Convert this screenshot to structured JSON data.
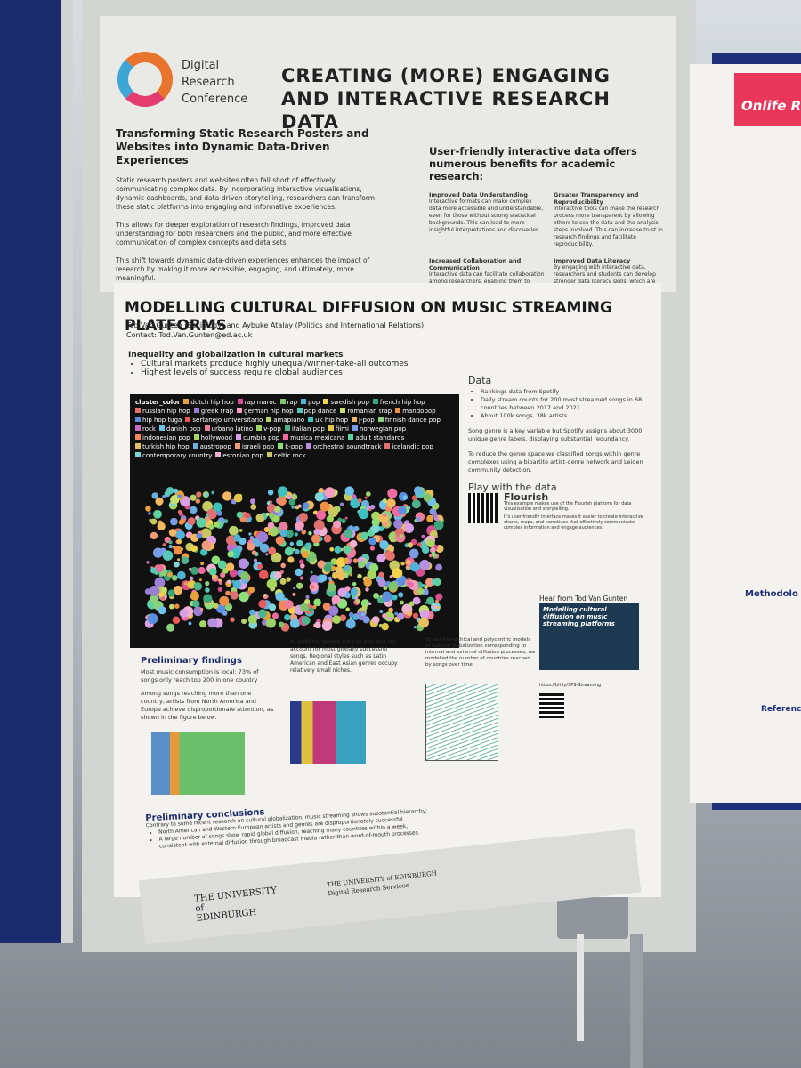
{
  "header": {
    "conference": [
      "Digital",
      "Research",
      "Conference"
    ],
    "title": "CREATING (MORE) ENGAGING AND INTERACTIVE RESEARCH DATA"
  },
  "intro": {
    "heading": "Transforming Static Research Posters and Websites into Dynamic Data-Driven Experiences",
    "paragraphs": [
      "Static research posters and websites often fall short of effectively communicating complex data. By incorporating interactive visualisations, dynamic dashboards, and data-driven storytelling, researchers can transform these static platforms into engaging and informative experiences.",
      "This allows for deeper exploration of research findings, improved data understanding for both researchers and the public, and more effective communication of complex concepts and data sets.",
      "This shift towards dynamic data-driven experiences enhances the impact of research by making it more accessible, engaging, and ultimately, more meaningful."
    ]
  },
  "benefits": {
    "heading": "User-friendly interactive data offers numerous benefits for academic research:",
    "items": [
      {
        "title": "Improved Data Understanding",
        "text": "Interactive formats can make complex data more accessible and understandable, even for those without strong statistical backgrounds. This can lead to more insightful interpretations and discoveries."
      },
      {
        "title": "Greater Transparency and Reproducibility",
        "text": "Interactive tools can make the research process more transparent by allowing others to see the data and the analysis steps involved. This can increase trust in research findings and facilitate reproducibility."
      },
      {
        "title": "Increased Collaboration and Communication",
        "text": "Interactive data can facilitate collaboration among researchers, enabling them to share insights, explore data together, and arrive at shared understandings more quickly."
      },
      {
        "title": "Improved Data Literacy",
        "text": "By engaging with interactive data, researchers and students can develop stronger data literacy skills, which are increasingly valuable in many fields."
      }
    ]
  },
  "poster": {
    "title": "MODELLING CULTURAL DIFFUSION ON MUSIC STREAMING PLATFORMS",
    "authors": "Tod Van Gunten (Sociology) and Aybuke Atalay (Politics and International Relations)",
    "contact": "Contact: Tod.Van.Gunten@ed.ac.uk",
    "section": "Inequality and globalization in cultural markets",
    "bullets": [
      "Cultural markets produce highly unequal/winner-take-all outcomes",
      "Highest levels of success require global audiences"
    ],
    "legend_title": "cluster_color",
    "legend": [
      {
        "label": "dutch hip hop",
        "color": "#e9a13b"
      },
      {
        "label": "rap maroc",
        "color": "#d84f8e"
      },
      {
        "label": "rap",
        "color": "#7ec46a"
      },
      {
        "label": "pop",
        "color": "#4fb3d9"
      },
      {
        "label": "swedish pop",
        "color": "#f2d24a"
      },
      {
        "label": "french hip hop",
        "color": "#3aa57a"
      },
      {
        "label": "russian hip hop",
        "color": "#e6716a"
      },
      {
        "label": "greek trap",
        "color": "#9b7fd4"
      },
      {
        "label": "german hip hop",
        "color": "#f59ac1"
      },
      {
        "label": "pop dance",
        "color": "#56c7b8"
      },
      {
        "label": "romanian trap",
        "color": "#c5e06b"
      },
      {
        "label": "mandopop",
        "color": "#ef8f43"
      },
      {
        "label": "hip hop tuga",
        "color": "#5c8fe0"
      },
      {
        "label": "sertanejo universitario",
        "color": "#e85a5a"
      },
      {
        "label": "amapiano",
        "color": "#b9d36a"
      },
      {
        "label": "uk hip hop",
        "color": "#3fc0c0"
      },
      {
        "label": "j-pop",
        "color": "#f4b860"
      },
      {
        "label": "finnish dance pop",
        "color": "#8bd17c"
      },
      {
        "label": "rock",
        "color": "#c86bc4"
      },
      {
        "label": "danish pop",
        "color": "#6dc2e8"
      },
      {
        "label": "urbano latino",
        "color": "#f07c9c"
      },
      {
        "label": "v-pop",
        "color": "#9ed36a"
      },
      {
        "label": "italian pop",
        "color": "#4cb38a"
      },
      {
        "label": "filmi",
        "color": "#e3c44b"
      },
      {
        "label": "norwegian pop",
        "color": "#7a9be6"
      },
      {
        "label": "indonesian pop",
        "color": "#f08a5d"
      },
      {
        "label": "hollywood",
        "color": "#a6d85e"
      },
      {
        "label": "cumbia pop",
        "color": "#d9a0e6"
      },
      {
        "label": "musica mexicana",
        "color": "#ef6aa0"
      },
      {
        "label": "adult standards",
        "color": "#5fd0a0"
      },
      {
        "label": "turkish hip hop",
        "color": "#e8c060"
      },
      {
        "label": "austropop",
        "color": "#6ab0e0"
      },
      {
        "label": "israeli pop",
        "color": "#f29b7c"
      },
      {
        "label": "k-pop",
        "color": "#8ee07a"
      },
      {
        "label": "orchestral soundtrack",
        "color": "#b68fe0"
      },
      {
        "label": "icelandic pop",
        "color": "#e07070"
      },
      {
        "label": "contemporary country",
        "color": "#7fd6d6"
      },
      {
        "label": "estonian pop",
        "color": "#f0b0d0"
      },
      {
        "label": "celtic rock",
        "color": "#c8c860"
      }
    ],
    "data_heading": "Data",
    "data_bullets": [
      "Rankings data from Spotify",
      "Daily stream counts for 200 most streamed songs in 68 countries between 2017 and 2021",
      "About 100k songs, 38k artists"
    ],
    "data_paragraphs": [
      "Song genre is a key variable but Spotify assigns about 3000 unique genre labels, displaying substantial redundancy.",
      "To reduce the genre space we classified songs within genre complexes using a bipartite artist-genre network and Leiden community detection."
    ],
    "play_heading": "Play with the data",
    "flourish": "Flourish",
    "flourish_text": [
      "This example makes use of the Flourish platform for data visualisation and storytelling.",
      "It's user-friendly interface makes it easier to create interactive charts, maps, and narratives that effectively communicate complex information and engage audiences."
    ],
    "hear_heading": "Hear from Tod Van Gunten",
    "video_title": "Modelling cultural diffusion on music streaming platforms",
    "link": "https://bit.ly/SPS-Streaming",
    "findings_heading": "Preliminary findings",
    "findings": [
      "Most music consumption is local: 73% of songs only reach top 200 in one country",
      "Among songs reaching more than one country, artists from North America and Europe achieve disproportionate attention, as shown in the figure below.",
      "In addition, genres such as pop and rap account for most globally successful songs. Regional styles such as Latin American and East Asian genres occupy relatively small niches.",
      "To test hierarchical and polycentric models of cultural globalization corresponding to internal and external diffusion processes, we modelled the number of countries reached by songs over time."
    ],
    "conclusions_heading": "Preliminary conclusions",
    "conclusions": "Contrary to some recent research on cultural globalization, music streaming shows substantial hierarchy:",
    "conclusion_bullets": [
      "North American and Western European artists and genres are disproportionately successful",
      "A large number of songs show rapid global diffusion, reaching many countries within a week, consistent with external diffusion through broadcast media rather than word-of-mouth processes."
    ]
  },
  "footer": {
    "university": [
      "THE UNIVERSITY",
      "of",
      "EDINBURGH"
    ],
    "services": [
      "THE UNIVERSITY of EDINBURGH",
      "Digital Research Services"
    ]
  },
  "neighbour": {
    "title": "Onlife R",
    "methodology": "Methodolo",
    "references": "References"
  }
}
